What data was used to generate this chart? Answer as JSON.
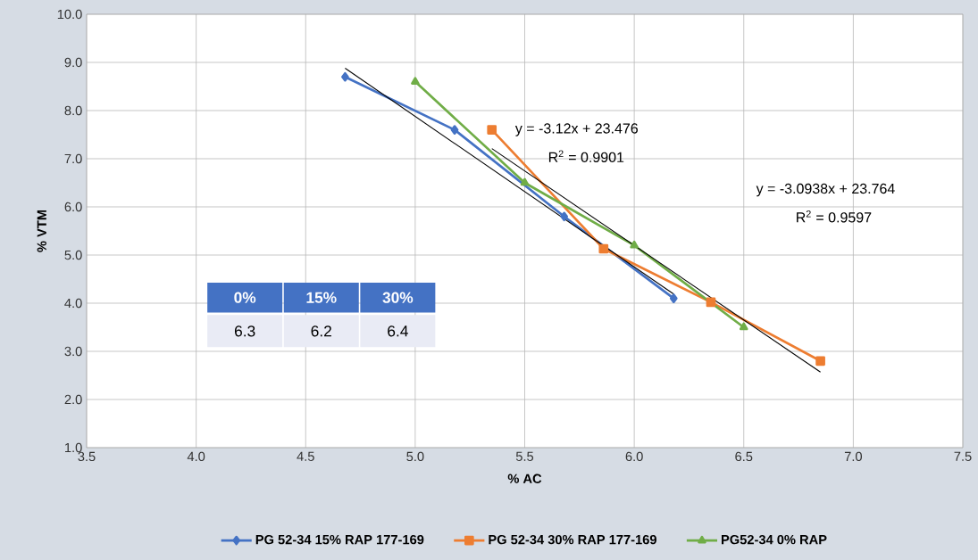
{
  "chart_data": {
    "type": "line",
    "xlabel": "% AC",
    "ylabel": "% VTM",
    "series": [
      {
        "name": "PG 52-34 15% RAP 177-169",
        "color": "#4472c4",
        "marker": "diamond",
        "x": [
          4.68,
          5.18,
          5.68,
          6.18
        ],
        "values": [
          8.7,
          7.6,
          5.8,
          4.1
        ]
      },
      {
        "name": "PG 52-34 30% RAP 177-169",
        "color": "#ed7d31",
        "marker": "square",
        "x": [
          5.35,
          5.86,
          6.35,
          6.85
        ],
        "values": [
          7.6,
          5.13,
          4.02,
          2.8
        ]
      },
      {
        "name": "PG52-34 0% RAP",
        "color": "#70ad47",
        "marker": "triangle",
        "x": [
          5.0,
          5.5,
          6.0,
          6.5
        ],
        "values": [
          8.6,
          6.5,
          5.2,
          3.5
        ]
      },
      {
        "type": "line",
        "color": "#000000",
        "marker": "none",
        "x": [
          4.68,
          6.18
        ],
        "values": [
          8.88,
          4.19
        ]
      },
      {
        "type": "line",
        "color": "#000000",
        "marker": "none",
        "x": [
          5.35,
          6.85
        ],
        "values": [
          7.21,
          2.57
        ]
      }
    ],
    "xlim": [
      3.5,
      7.5
    ],
    "xticks": [
      {
        "value": 3.5,
        "label": "3.5"
      },
      {
        "value": 4.0,
        "label": "4.0"
      },
      {
        "value": 4.5,
        "label": "4.5"
      },
      {
        "value": 5.0,
        "label": "5.0"
      },
      {
        "value": 5.5,
        "label": "5.5"
      },
      {
        "value": 6.0,
        "label": "6.0"
      },
      {
        "value": 6.5,
        "label": "6.5"
      },
      {
        "value": 7.0,
        "label": "7.0"
      },
      {
        "value": 7.5,
        "label": "7.5"
      }
    ],
    "ylim": [
      1.0,
      10.0
    ],
    "yticks": [
      {
        "value": 1.0,
        "label": "1.0"
      },
      {
        "value": 2.0,
        "label": "2.0"
      },
      {
        "value": 3.0,
        "label": "3.0"
      },
      {
        "value": 4.0,
        "label": "4.0"
      },
      {
        "value": 5.0,
        "label": "5.0"
      },
      {
        "value": 6.0,
        "label": "6.0"
      },
      {
        "value": 7.0,
        "label": "7.0"
      },
      {
        "value": 8.0,
        "label": "8.0"
      },
      {
        "value": 9.0,
        "label": "9.0"
      },
      {
        "value": 10.0,
        "label": "10.0"
      }
    ],
    "grid": true,
    "legend": "bottom",
    "line_style": "solid",
    "annotations": [
      "y = -3.12x + 23.476",
      "R$^{2}$ = 0.9901",
      "y = -3.0938x + 23.764",
      "R$^{2}$ = 0.9597",
      "0%",
      "15%",
      "30%",
      "6.3",
      "6.2",
      "6.4"
    ]
  }
}
